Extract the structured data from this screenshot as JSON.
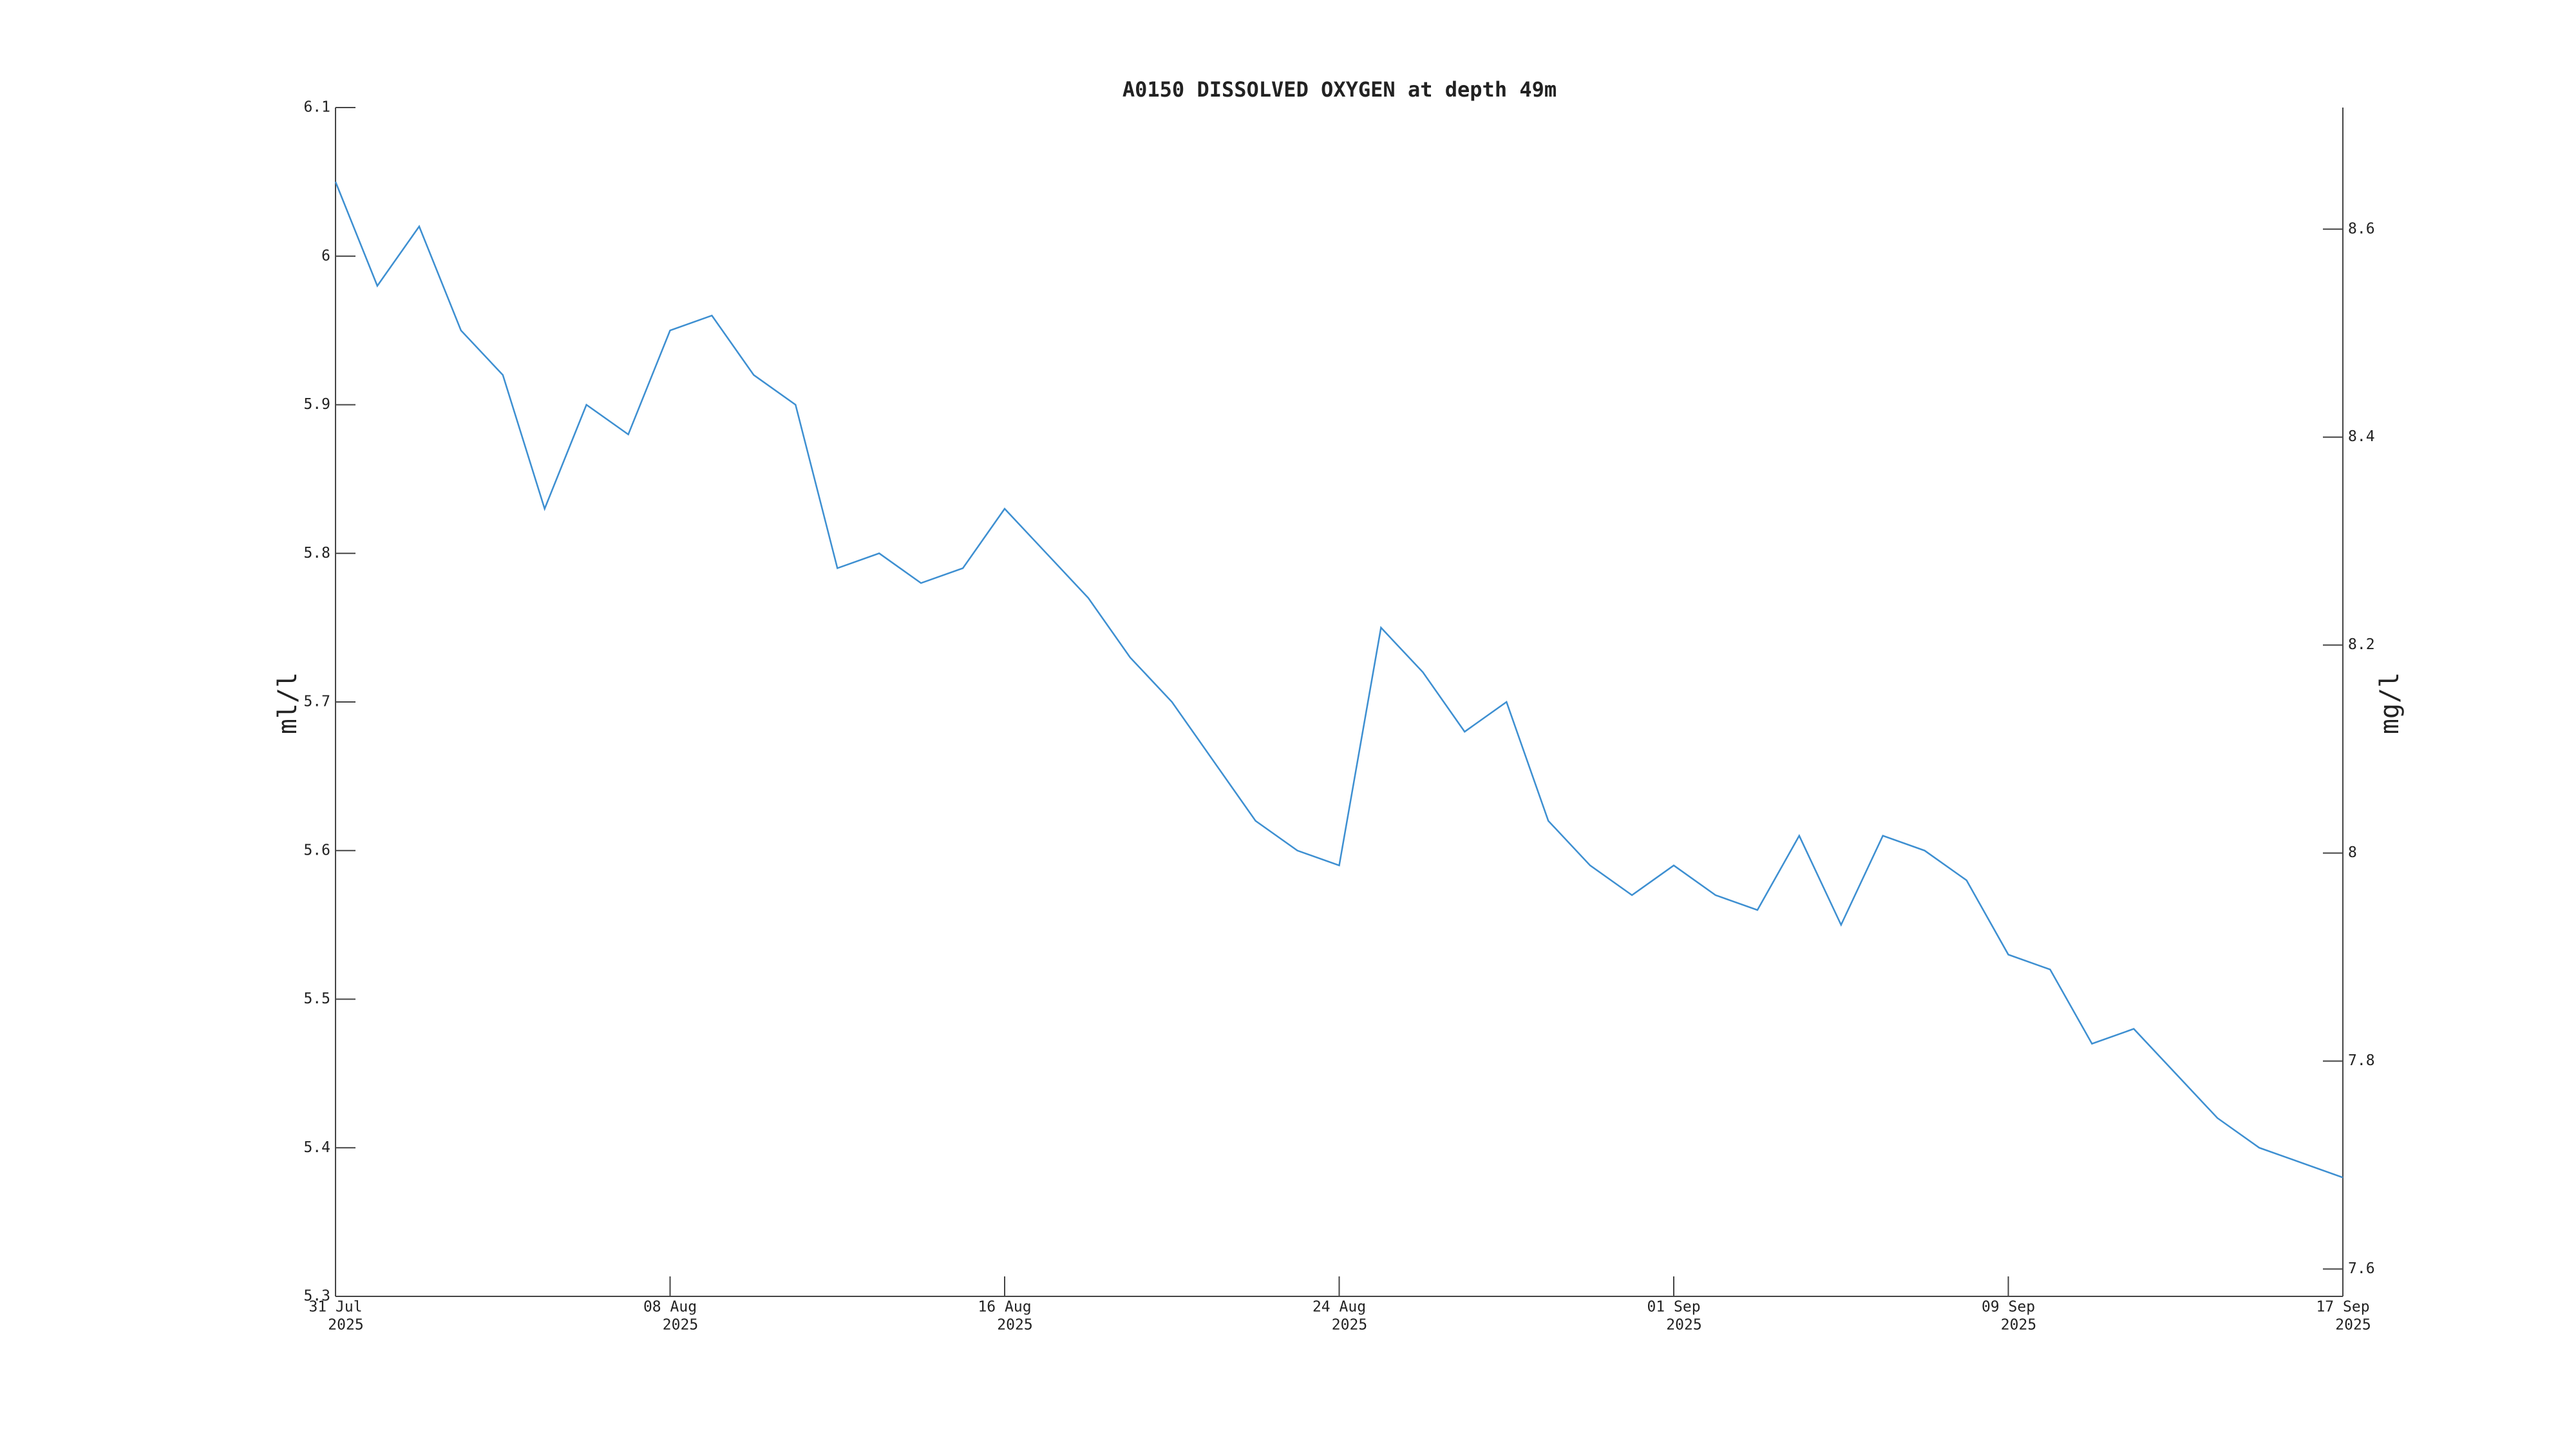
{
  "chart_data": {
    "type": "line",
    "title": "A0150 DISSOLVED OXYGEN at depth 49m",
    "y_label": "ml/l",
    "y2_label": "mg/l",
    "x": [
      "2025-07-31",
      "2025-08-01",
      "2025-08-02",
      "2025-08-03",
      "2025-08-04",
      "2025-08-05",
      "2025-08-06",
      "2025-08-07",
      "2025-08-08",
      "2025-08-09",
      "2025-08-10",
      "2025-08-11",
      "2025-08-12",
      "2025-08-13",
      "2025-08-14",
      "2025-08-15",
      "2025-08-16",
      "2025-08-17",
      "2025-08-18",
      "2025-08-19",
      "2025-08-20",
      "2025-08-21",
      "2025-08-22",
      "2025-08-23",
      "2025-08-24",
      "2025-08-25",
      "2025-08-26",
      "2025-08-27",
      "2025-08-28",
      "2025-08-29",
      "2025-08-30",
      "2025-08-31",
      "2025-09-01",
      "2025-09-02",
      "2025-09-03",
      "2025-09-04",
      "2025-09-05",
      "2025-09-06",
      "2025-09-07",
      "2025-09-08",
      "2025-09-09",
      "2025-09-10",
      "2025-09-11",
      "2025-09-12",
      "2025-09-13",
      "2025-09-14",
      "2025-09-15",
      "2025-09-16",
      "2025-09-17"
    ],
    "series": [
      {
        "name": "ml/l",
        "color": "#3d8fd1",
        "values": [
          6.05,
          5.98,
          6.02,
          5.95,
          5.92,
          5.83,
          5.9,
          5.88,
          5.95,
          5.96,
          5.92,
          5.9,
          5.79,
          5.8,
          5.78,
          5.79,
          5.83,
          5.8,
          5.77,
          5.73,
          5.7,
          5.66,
          5.62,
          5.6,
          5.59,
          5.75,
          5.72,
          5.68,
          5.7,
          5.62,
          5.59,
          5.57,
          5.59,
          5.57,
          5.56,
          5.61,
          5.55,
          5.61,
          5.6,
          5.58,
          5.53,
          5.52,
          5.47,
          5.48,
          5.45,
          5.42,
          5.4,
          5.39,
          5.38
        ]
      }
    ],
    "xlim": [
      "2025-07-31",
      "2025-09-17"
    ],
    "xticks": [
      {
        "value": "2025-07-31",
        "label": "31 Jul",
        "sublabel": "2025"
      },
      {
        "value": "2025-08-08",
        "label": "08 Aug",
        "sublabel": "2025"
      },
      {
        "value": "2025-08-16",
        "label": "16 Aug",
        "sublabel": "2025"
      },
      {
        "value": "2025-08-24",
        "label": "24 Aug",
        "sublabel": "2025"
      },
      {
        "value": "2025-09-01",
        "label": "01 Sep",
        "sublabel": "2025"
      },
      {
        "value": "2025-09-09",
        "label": "09 Sep",
        "sublabel": "2025"
      },
      {
        "value": "2025-09-17",
        "label": "17 Sep",
        "sublabel": "2025"
      }
    ],
    "ylim": [
      5.3,
      6.1
    ],
    "yticks": [
      5.3,
      5.4,
      5.5,
      5.6,
      5.7,
      5.8,
      5.9,
      6,
      6.1
    ],
    "y2lim": [
      7.5737,
      8.7169
    ],
    "y2ticks": [
      7.6,
      7.8,
      8,
      8.2,
      8.4,
      8.6
    ],
    "grid": false
  }
}
